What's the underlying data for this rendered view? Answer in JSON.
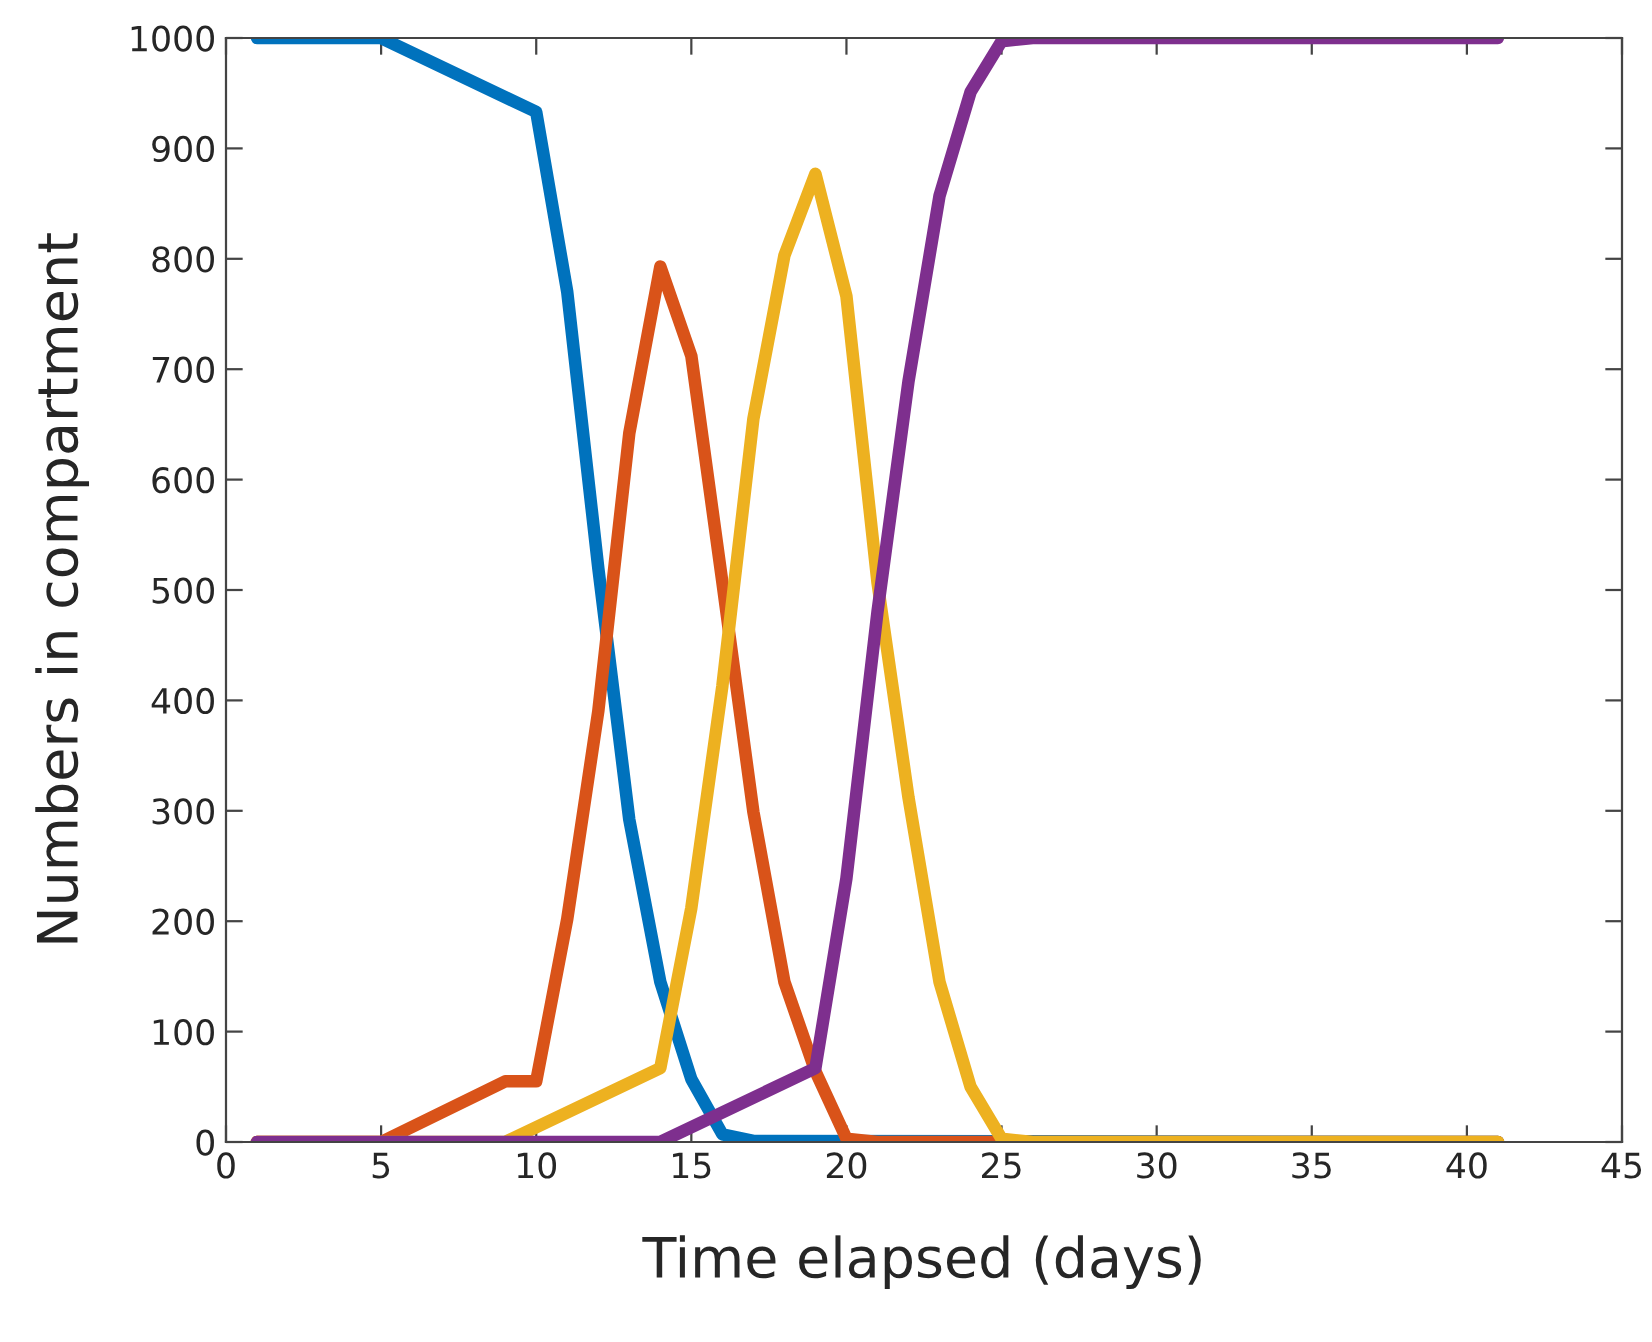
{
  "chart_data": {
    "type": "line",
    "xlabel": "Time elapsed (days)",
    "ylabel": "Numbers in compartment",
    "xlim": [
      0,
      45
    ],
    "ylim": [
      0,
      1000
    ],
    "xticks": [
      0,
      5,
      10,
      15,
      20,
      25,
      30,
      35,
      40,
      45
    ],
    "yticks": [
      0,
      100,
      200,
      300,
      400,
      500,
      600,
      700,
      800,
      900,
      1000
    ],
    "grid": false,
    "legend": false,
    "marker": "none",
    "line_style": "solid",
    "series": [
      {
        "color": "#0072bd",
        "x": [
          1,
          5,
          10,
          11,
          12,
          13,
          14,
          15,
          16,
          17,
          41
        ],
        "values": [
          1000,
          1000,
          933,
          770,
          520,
          292,
          145,
          57,
          7,
          1,
          0
        ]
      },
      {
        "color": "#d95319",
        "x": [
          1,
          5,
          9,
          10,
          11,
          12,
          13,
          14,
          15,
          16,
          17,
          18,
          19,
          20,
          21,
          41
        ],
        "values": [
          0,
          0,
          55,
          55,
          202,
          390,
          642,
          793,
          712,
          507,
          299,
          145,
          64,
          3,
          0,
          0
        ]
      },
      {
        "color": "#edb120",
        "x": [
          1,
          9,
          14,
          15,
          16,
          17,
          18,
          19,
          20,
          21,
          22,
          23,
          24,
          25,
          26,
          41
        ],
        "values": [
          0,
          0,
          67,
          212,
          413,
          655,
          803,
          877,
          766,
          507,
          312,
          145,
          50,
          3,
          0,
          0
        ]
      },
      {
        "color": "#7e2f8e",
        "x": [
          1,
          14,
          19,
          20,
          21,
          22,
          23,
          24,
          25,
          26,
          41
        ],
        "values": [
          0,
          0,
          67,
          239,
          480,
          689,
          857,
          951,
          997,
          1000,
          1000
        ]
      }
    ]
  }
}
